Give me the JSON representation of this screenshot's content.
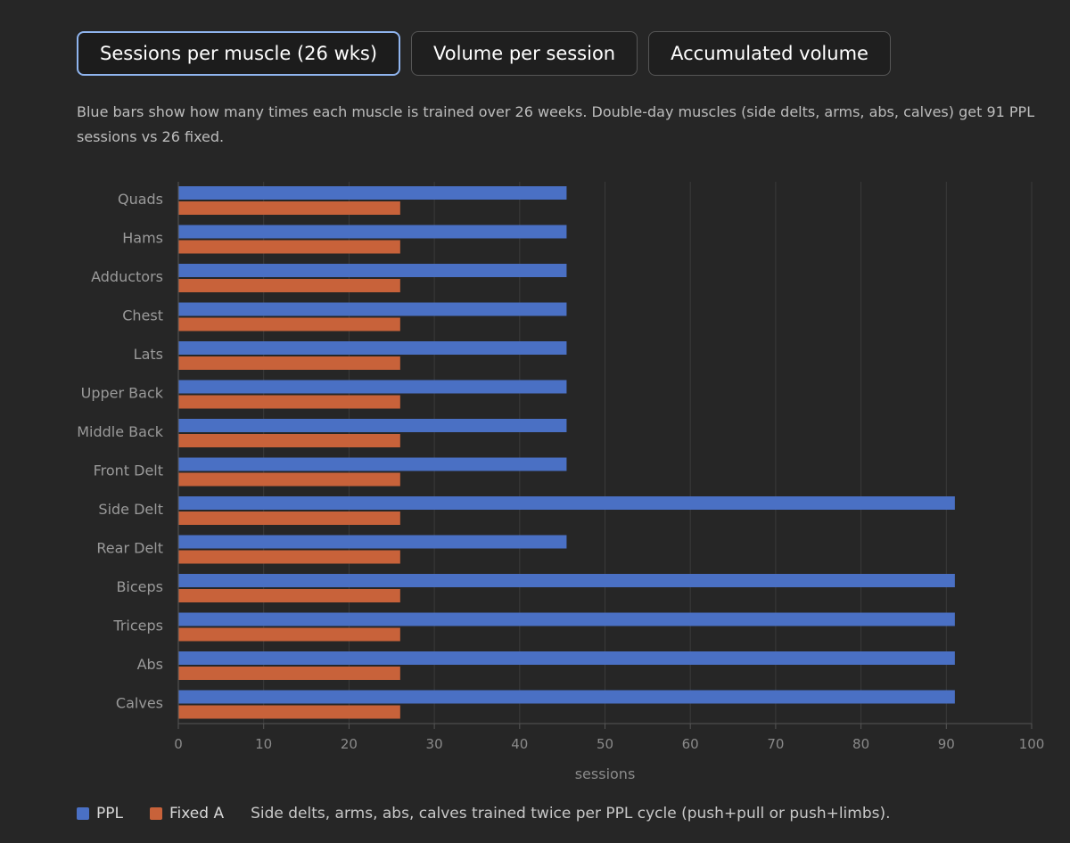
{
  "tabs": [
    {
      "label": "Sessions per muscle (26 wks)",
      "active": true
    },
    {
      "label": "Volume per session",
      "active": false
    },
    {
      "label": "Accumulated volume",
      "active": false
    }
  ],
  "description": "Blue bars show how many times each muscle is trained over 26 weeks. Double-day muscles (side delts, arms, abs, calves) get 91 PPL sessions vs 26 fixed.",
  "legend": {
    "items": [
      {
        "label": "PPL",
        "color": "#4a70c4"
      },
      {
        "label": "Fixed A",
        "color": "#c8623a"
      }
    ],
    "note": "Side delts, arms, abs, calves trained twice per PPL cycle (push+pull or push+limbs)."
  },
  "chart_data": {
    "type": "bar",
    "orientation": "horizontal",
    "categories": [
      "Quads",
      "Hams",
      "Adductors",
      "Chest",
      "Lats",
      "Upper Back",
      "Middle Back",
      "Front Delt",
      "Side Delt",
      "Rear Delt",
      "Biceps",
      "Triceps",
      "Abs",
      "Calves"
    ],
    "series": [
      {
        "name": "PPL",
        "color": "#4a70c4",
        "values": [
          45.5,
          45.5,
          45.5,
          45.5,
          45.5,
          45.5,
          45.5,
          45.5,
          91,
          45.5,
          91,
          91,
          91,
          91
        ]
      },
      {
        "name": "Fixed A",
        "color": "#c8623a",
        "values": [
          26,
          26,
          26,
          26,
          26,
          26,
          26,
          26,
          26,
          26,
          26,
          26,
          26,
          26
        ]
      }
    ],
    "xlabel": "sessions",
    "ylabel": "",
    "xlim": [
      0,
      100
    ],
    "xticks": [
      0,
      10,
      20,
      30,
      40,
      50,
      60,
      70,
      80,
      90,
      100
    ],
    "grid": true,
    "legend_position": "bottom-left"
  }
}
